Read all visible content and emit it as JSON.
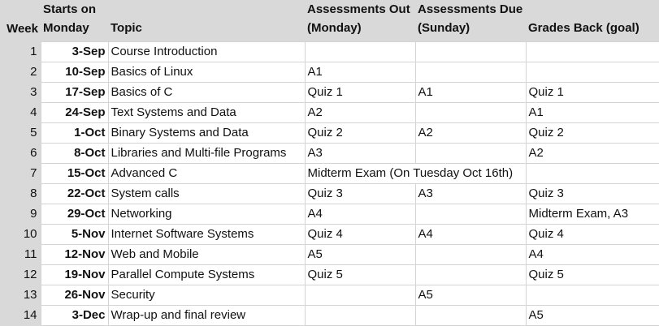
{
  "headers": {
    "week": "Week",
    "starts_on": [
      "Starts on",
      "Monday"
    ],
    "topic": "Topic",
    "assessments_out": [
      "Assessments Out",
      "(Monday)"
    ],
    "assessments_due": [
      "Assessments Due",
      "(Sunday)"
    ],
    "grades_back": "Grades Back (goal)"
  },
  "rows": [
    {
      "week": "1",
      "date": "3-Sep",
      "topic": "Course Introduction",
      "out": "",
      "due": "",
      "grades": ""
    },
    {
      "week": "2",
      "date": "10-Sep",
      "topic": "Basics of Linux",
      "out": "A1",
      "due": "",
      "grades": ""
    },
    {
      "week": "3",
      "date": "17-Sep",
      "topic": "Basics of C",
      "out": "Quiz 1",
      "due": "A1",
      "grades": "Quiz 1"
    },
    {
      "week": "4",
      "date": "24-Sep",
      "topic": "Text Systems and Data",
      "out": "A2",
      "due": "",
      "grades": "A1"
    },
    {
      "week": "5",
      "date": "1-Oct",
      "topic": "Binary Systems and Data",
      "out": "Quiz 2",
      "due": "A2",
      "grades": "Quiz 2"
    },
    {
      "week": "6",
      "date": "8-Oct",
      "topic": "Libraries and Multi-file Programs",
      "out": "A3",
      "due": "",
      "grades": "A2"
    },
    {
      "week": "7",
      "date": "15-Oct",
      "topic": "Advanced C",
      "out": "Midterm Exam (On Tuesday Oct 16th)",
      "due": "",
      "grades": ""
    },
    {
      "week": "8",
      "date": "22-Oct",
      "topic": "System calls",
      "out": "Quiz 3",
      "due": "A3",
      "grades": "Quiz 3"
    },
    {
      "week": "9",
      "date": "29-Oct",
      "topic": "Networking",
      "out": "A4",
      "due": "",
      "grades": "Midterm Exam, A3"
    },
    {
      "week": "10",
      "date": "5-Nov",
      "topic": "Internet Software Systems",
      "out": "Quiz 4",
      "due": "A4",
      "grades": "Quiz 4"
    },
    {
      "week": "11",
      "date": "12-Nov",
      "topic": "Web and Mobile",
      "out": "A5",
      "due": "",
      "grades": "A4"
    },
    {
      "week": "12",
      "date": "19-Nov",
      "topic": "Parallel Compute Systems",
      "out": "Quiz 5",
      "due": "",
      "grades": "Quiz 5"
    },
    {
      "week": "13",
      "date": "26-Nov",
      "topic": "Security",
      "out": "",
      "due": "A5",
      "grades": ""
    },
    {
      "week": "14",
      "date": "3-Dec",
      "topic": "Wrap-up and final review",
      "out": "",
      "due": "",
      "grades": "A5"
    }
  ]
}
